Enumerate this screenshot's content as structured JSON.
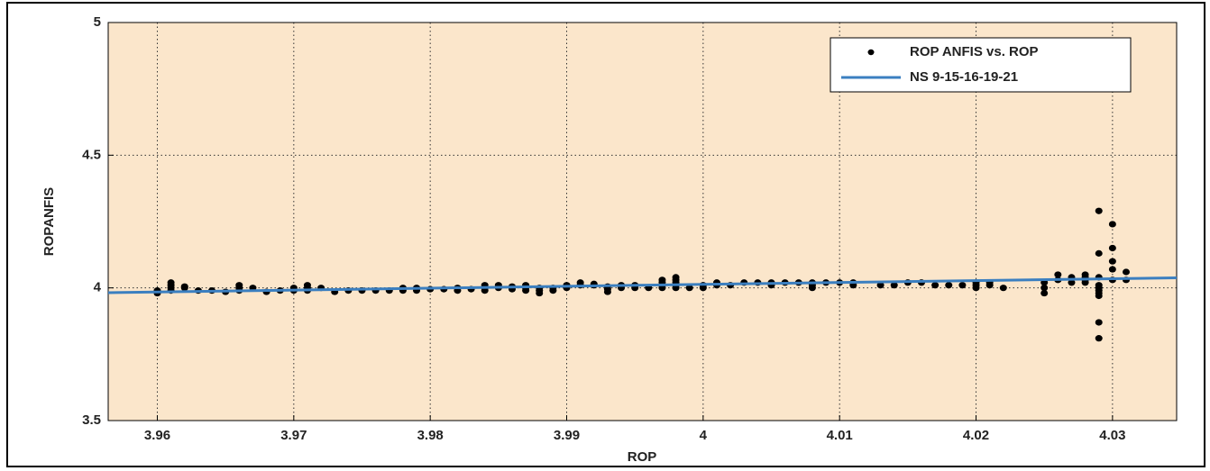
{
  "chart_data": {
    "type": "scatter",
    "xlabel": "ROP",
    "ylabel": "ROPANFIS",
    "xlim": [
      3.9564,
      4.0347
    ],
    "ylim": [
      3.5,
      5
    ],
    "xticks": [
      3.96,
      3.97,
      3.98,
      3.99,
      4,
      4.01,
      4.02,
      4.03
    ],
    "yticks": [
      3.5,
      4,
      4.5,
      5
    ],
    "grid": true,
    "legend": "upper right",
    "background": "#fbe6cb",
    "series": [
      {
        "name": "ROP ANFIS vs. ROP",
        "type": "scatter",
        "color": "#000000",
        "x": [
          3.96,
          3.96,
          3.961,
          3.961,
          3.961,
          3.961,
          3.962,
          3.962,
          3.963,
          3.964,
          3.965,
          3.966,
          3.966,
          3.966,
          3.967,
          3.968,
          3.969,
          3.97,
          3.97,
          3.971,
          3.971,
          3.971,
          3.972,
          3.973,
          3.974,
          3.975,
          3.976,
          3.977,
          3.978,
          3.978,
          3.979,
          3.979,
          3.98,
          3.981,
          3.982,
          3.982,
          3.983,
          3.984,
          3.984,
          3.984,
          3.985,
          3.985,
          3.986,
          3.986,
          3.987,
          3.987,
          3.987,
          3.988,
          3.988,
          3.988,
          3.989,
          3.989,
          3.99,
          3.99,
          3.991,
          3.991,
          3.992,
          3.992,
          3.993,
          3.993,
          3.993,
          3.994,
          3.994,
          3.995,
          3.995,
          3.996,
          3.997,
          3.997,
          3.997,
          3.997,
          3.998,
          3.998,
          3.998,
          3.998,
          3.998,
          3.999,
          4.0,
          4.0,
          4.001,
          4.001,
          4.002,
          4.003,
          4.004,
          4.005,
          4.005,
          4.006,
          4.007,
          4.008,
          4.008,
          4.008,
          4.009,
          4.01,
          4.011,
          4.011,
          4.013,
          4.014,
          4.015,
          4.016,
          4.017,
          4.018,
          4.019,
          4.02,
          4.02,
          4.02,
          4.021,
          4.021,
          4.022,
          4.025,
          4.025,
          4.025,
          4.026,
          4.026,
          4.027,
          4.027,
          4.028,
          4.028,
          4.028,
          4.028,
          4.029,
          4.029,
          4.029,
          4.029,
          4.029,
          4.029,
          4.029,
          4.029,
          4.029,
          4.029,
          4.03,
          4.03,
          4.03,
          4.03,
          4.03,
          4.031,
          4.031
        ],
        "values": [
          3.98,
          3.99,
          3.99,
          4.0,
          4.01,
          4.02,
          4.0,
          4.005,
          3.99,
          3.99,
          3.985,
          3.99,
          4.0,
          4.01,
          4.0,
          3.985,
          3.99,
          3.99,
          4.0,
          3.99,
          4.0,
          4.01,
          4.0,
          3.985,
          3.99,
          3.99,
          3.99,
          3.99,
          3.99,
          4.0,
          3.99,
          4.0,
          3.995,
          3.995,
          3.99,
          4.0,
          3.995,
          3.99,
          4.0,
          4.01,
          4.0,
          4.01,
          3.995,
          4.005,
          3.99,
          4.0,
          4.01,
          3.98,
          3.99,
          4.0,
          3.99,
          4.0,
          4.0,
          4.01,
          4.01,
          4.02,
          4.01,
          4.015,
          3.985,
          3.995,
          4.005,
          4.0,
          4.01,
          4.0,
          4.01,
          4.0,
          4.0,
          4.01,
          4.02,
          4.03,
          4.0,
          4.01,
          4.02,
          4.03,
          4.04,
          4.0,
          4.0,
          4.01,
          4.01,
          4.02,
          4.01,
          4.02,
          4.02,
          4.01,
          4.02,
          4.02,
          4.02,
          4.0,
          4.01,
          4.02,
          4.02,
          4.02,
          4.01,
          4.02,
          4.01,
          4.01,
          4.02,
          4.02,
          4.01,
          4.01,
          4.01,
          4.0,
          4.01,
          4.02,
          4.01,
          4.02,
          4.0,
          3.98,
          4.0,
          4.02,
          4.03,
          4.05,
          4.02,
          4.04,
          4.02,
          4.03,
          4.04,
          4.05,
          3.81,
          3.87,
          3.97,
          3.98,
          3.99,
          4.0,
          4.01,
          4.04,
          4.13,
          4.29,
          4.03,
          4.07,
          4.1,
          4.15,
          4.24,
          4.03,
          4.06
        ]
      },
      {
        "name": "NS 9-15-16-19-21",
        "type": "line",
        "color": "#3b7fc0",
        "x": [
          3.9564,
          4.0347
        ],
        "values": [
          3.982,
          4.038
        ]
      }
    ]
  }
}
